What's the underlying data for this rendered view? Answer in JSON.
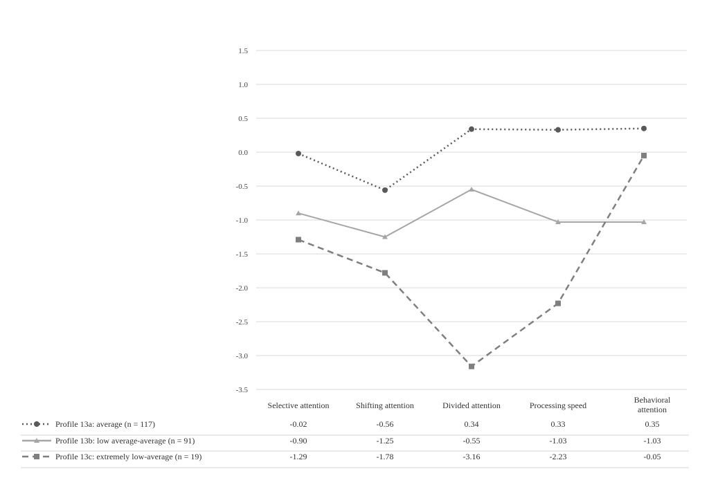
{
  "chart_data": {
    "type": "line",
    "title": "",
    "xlabel": "",
    "ylabel": "",
    "categories": [
      "Selective attention",
      "Shifting attention",
      "Divided attention",
      "Processing speed",
      "Behavioral attention"
    ],
    "ylim": [
      -3.5,
      1.5
    ],
    "yticks": [
      "1.5",
      "1.0",
      "0.5",
      "0.0",
      "-0.5",
      "-1.0",
      "-1.5",
      "-2.0",
      "-2.5",
      "-3.0",
      "-3.5"
    ],
    "grid": true,
    "legend_placement": "bottom-table",
    "series": [
      {
        "name": "Profile 13a: average (n = 117)",
        "values": [
          -0.02,
          -0.56,
          0.34,
          0.33,
          0.35
        ],
        "labels": [
          "-0.02",
          "-0.56",
          "0.34",
          "0.33",
          "0.35"
        ],
        "color": "#595959",
        "dash": "2,4",
        "marker": "circle"
      },
      {
        "name": "Profile 13b: low average-average (n = 91)",
        "values": [
          -0.9,
          -1.25,
          -0.55,
          -1.03,
          -1.03
        ],
        "labels": [
          "-0.90",
          "-1.25",
          "-0.55",
          "-1.03",
          "-1.03"
        ],
        "color": "#a6a6a6",
        "dash": "",
        "marker": "triangle"
      },
      {
        "name": "Profile 13c: extremely low-average (n = 19)",
        "values": [
          -1.29,
          -1.78,
          -3.16,
          -2.23,
          -0.05
        ],
        "labels": [
          "-1.29",
          "-1.78",
          "-3.16",
          "-2.23",
          "-0.05"
        ],
        "color": "#7f7f7f",
        "dash": "9,6",
        "marker": "square"
      }
    ]
  }
}
